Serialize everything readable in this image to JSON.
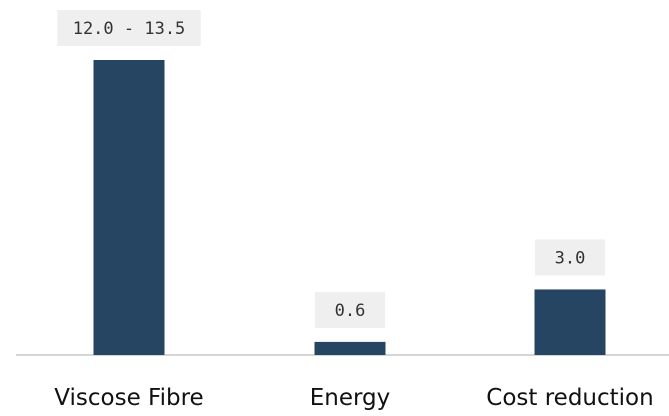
{
  "chart_data": {
    "type": "bar",
    "categories": [
      "Viscose Fibre",
      "Energy",
      "Cost reduction"
    ],
    "values": [
      13.5,
      0.6,
      3.0
    ],
    "data_labels": [
      "12.0 - 13.5",
      "0.6",
      "3.0"
    ],
    "ylim": [
      0,
      13.5
    ],
    "grid": false,
    "legend": "none",
    "bar_color": "#264563"
  }
}
